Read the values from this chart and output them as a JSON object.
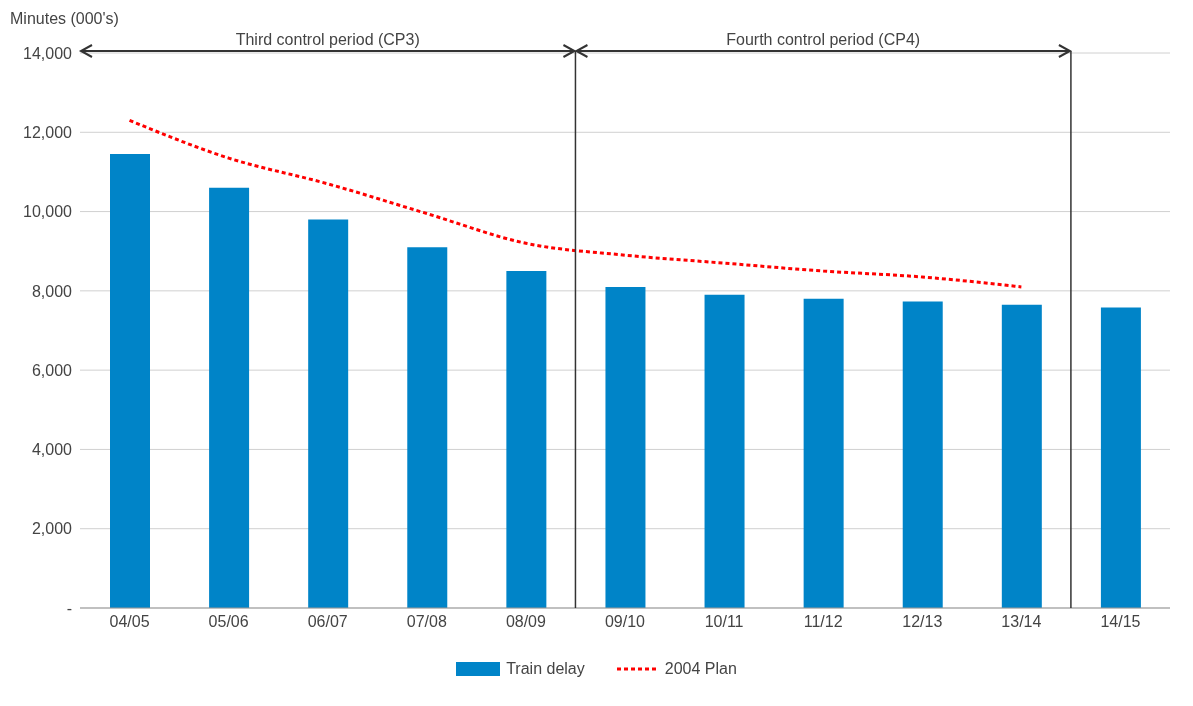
{
  "chart_data": {
    "type": "bar",
    "ylabel": "Minutes (000's)",
    "categories": [
      "04/05",
      "05/06",
      "06/07",
      "07/08",
      "08/09",
      "09/10",
      "10/11",
      "11/12",
      "12/13",
      "13/14",
      "14/15"
    ],
    "series": [
      {
        "name": "Train delay",
        "color": "#0084c8",
        "values": [
          11450,
          10600,
          9800,
          9100,
          8500,
          8100,
          7900,
          7800,
          7730,
          7650,
          7580
        ]
      },
      {
        "name": "2004 Plan",
        "type": "line",
        "color": "#ff0000",
        "line_style": "dashed",
        "marker": "none",
        "values": [
          12300,
          11350,
          10700,
          9950,
          9200,
          8900,
          8700,
          8500,
          8350,
          8100,
          null
        ]
      }
    ],
    "ylim": [
      0,
      14000
    ],
    "yticks": [
      {
        "value": 0,
        "label": "-"
      },
      {
        "value": 2000,
        "label": "2,000"
      },
      {
        "value": 4000,
        "label": "4,000"
      },
      {
        "value": 6000,
        "label": "6,000"
      },
      {
        "value": 8000,
        "label": "8,000"
      },
      {
        "value": 10000,
        "label": "10,000"
      },
      {
        "value": 12000,
        "label": "12,000"
      },
      {
        "value": 14000,
        "label": "14,000"
      }
    ],
    "annotations": [
      "Third control period (CP3)",
      "Fourth control period (CP4)"
    ],
    "grid": "y",
    "legend": "bottom"
  }
}
